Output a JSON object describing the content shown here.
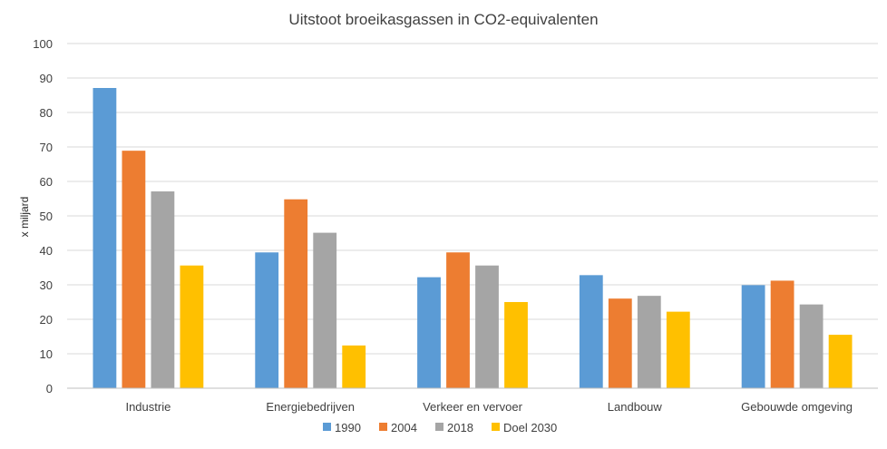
{
  "chart_data": {
    "type": "bar",
    "title": "Uitstoot broeikasgassen in CO2-equivalenten",
    "ylabel": "x miljard",
    "xlabel": "",
    "ylim": [
      0,
      100
    ],
    "yticks": [
      0,
      10,
      20,
      30,
      40,
      50,
      60,
      70,
      80,
      90,
      100
    ],
    "grid": true,
    "legend_position": "bottom",
    "categories": [
      "Industrie",
      "Energiebedrijven",
      "Verkeer en vervoer",
      "Landbouw",
      "Gebouwde omgeving"
    ],
    "series": [
      {
        "name": "1990",
        "color": "#5B9BD5",
        "values": [
          87,
          39.3,
          32.1,
          32.7,
          29.8
        ]
      },
      {
        "name": "2004",
        "color": "#ED7D31",
        "values": [
          68.8,
          54.7,
          39.3,
          25.9,
          31.1
        ]
      },
      {
        "name": "2018",
        "color": "#A5A5A5",
        "values": [
          57,
          45,
          35.5,
          26.7,
          24.2
        ]
      },
      {
        "name": "Doel 2030",
        "color": "#FFC000",
        "values": [
          35.5,
          12.3,
          24.9,
          22.1,
          15.4
        ]
      }
    ]
  }
}
